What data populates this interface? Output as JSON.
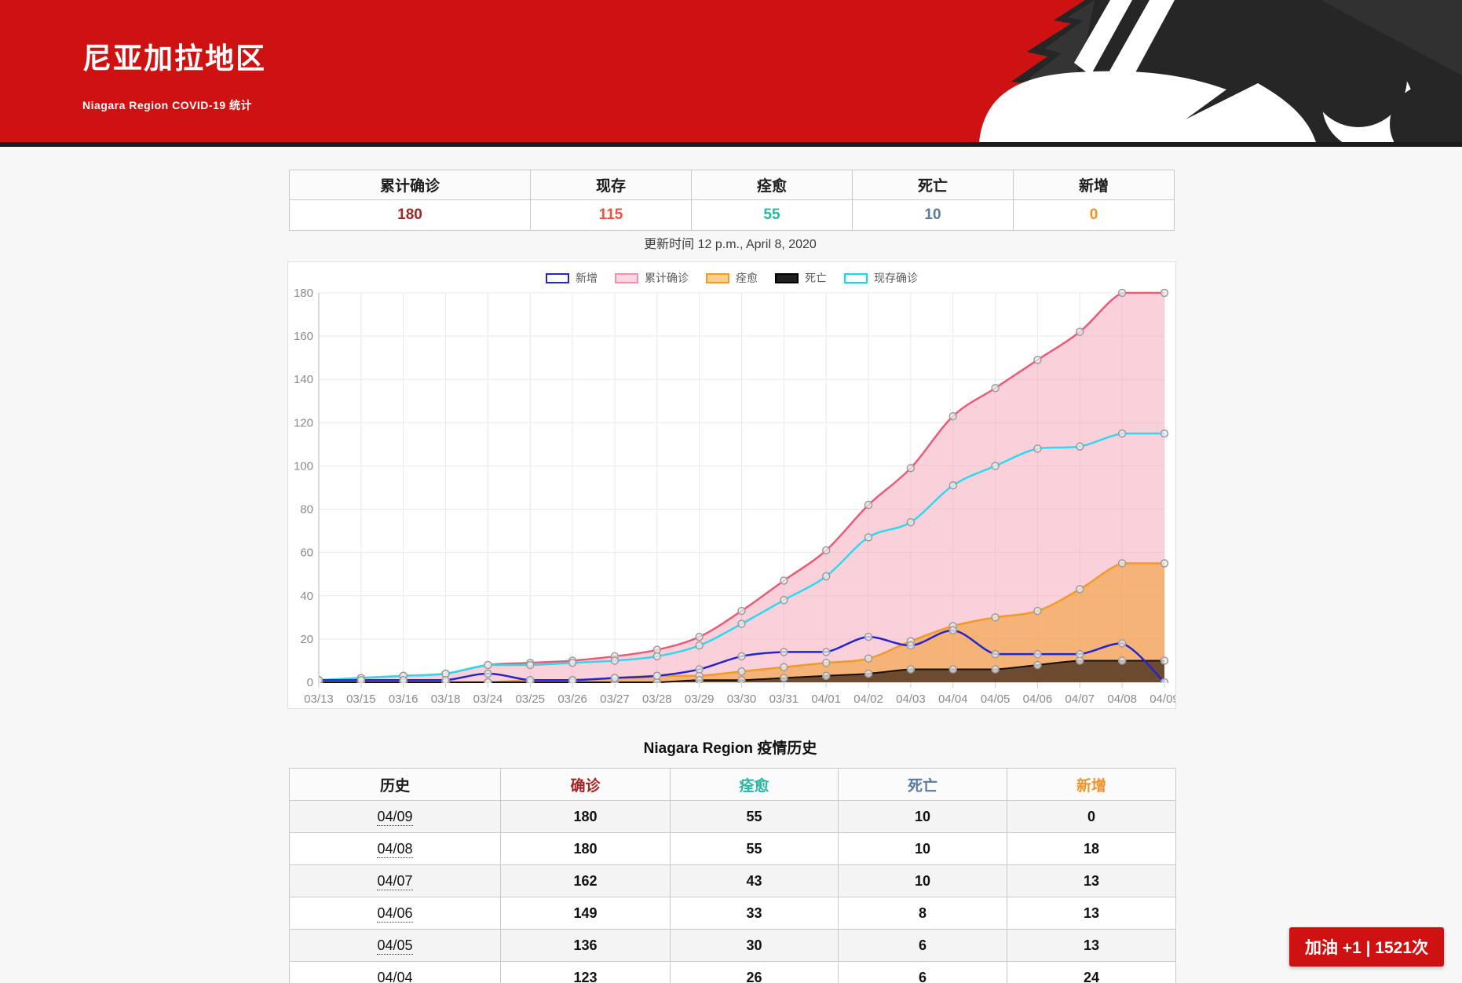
{
  "header": {
    "title": "尼亚加拉地区",
    "subtitle": "Niagara Region COVID-19 统计",
    "accent_red": "#ce1212",
    "mascot_dark": "#262626"
  },
  "summary": {
    "columns": [
      {
        "label": "累计确诊",
        "value": "180",
        "color": "#a32626"
      },
      {
        "label": "现存",
        "value": "115",
        "color": "#f4503c"
      },
      {
        "label": "痊愈",
        "value": "55",
        "color": "#28b7a0"
      },
      {
        "label": "死亡",
        "value": "10",
        "color": "#5b7a9d"
      },
      {
        "label": "新增",
        "value": "0",
        "color": "#f0932c"
      }
    ],
    "updated": "更新时间 12 p.m., April 8, 2020"
  },
  "chart_data": {
    "type": "line",
    "title": "",
    "xlabel": "",
    "ylabel": "",
    "ylim": [
      0,
      180
    ],
    "ytick_step": 20,
    "grid": true,
    "legend_position": "top",
    "categories": [
      "03/13",
      "03/15",
      "03/16",
      "03/18",
      "03/24",
      "03/25",
      "03/26",
      "03/27",
      "03/28",
      "03/29",
      "03/30",
      "03/31",
      "04/01",
      "04/02",
      "04/03",
      "04/04",
      "04/05",
      "04/06",
      "04/07",
      "04/08",
      "04/09"
    ],
    "series": [
      {
        "name": "累计确诊",
        "line_color": "#e85c78",
        "fill_color": "rgba(244,154,175,0.45)",
        "area": true,
        "values": [
          1,
          2,
          3,
          4,
          8,
          9,
          10,
          12,
          15,
          21,
          33,
          47,
          61,
          82,
          99,
          123,
          136,
          149,
          162,
          180,
          180
        ]
      },
      {
        "name": "痊愈",
        "line_color": "#f09a2c",
        "fill_color": "rgba(244,158,54,0.6)",
        "area": true,
        "values": [
          0,
          0,
          0,
          0,
          0,
          1,
          1,
          2,
          3,
          3,
          5,
          7,
          9,
          11,
          19,
          26,
          30,
          33,
          43,
          55,
          55
        ]
      },
      {
        "name": "死亡",
        "line_color": "#191008",
        "fill_color": "rgba(25,12,5,0.62)",
        "area": true,
        "values": [
          0,
          0,
          0,
          0,
          0,
          0,
          0,
          0,
          0,
          1,
          1,
          2,
          3,
          4,
          6,
          6,
          6,
          8,
          10,
          10,
          10
        ]
      },
      {
        "name": "现存确诊",
        "line_color": "#2fd8ee",
        "fill_color": null,
        "area": false,
        "values": [
          1,
          2,
          3,
          4,
          8,
          8,
          9,
          10,
          12,
          17,
          27,
          38,
          49,
          67,
          74,
          91,
          100,
          108,
          109,
          115,
          115
        ]
      },
      {
        "name": "新增",
        "line_color": "#2424cc",
        "fill_color": null,
        "area": false,
        "values": [
          1,
          1,
          1,
          1,
          4,
          1,
          1,
          2,
          3,
          6,
          12,
          14,
          14,
          21,
          17,
          24,
          13,
          13,
          13,
          18,
          0
        ]
      }
    ],
    "legend": [
      {
        "label": "新增",
        "box_border": "#2424cc",
        "box_fill": "#ffffff"
      },
      {
        "label": "累计确诊",
        "box_border": "#f48fb1",
        "box_fill": "#fcd7e2"
      },
      {
        "label": "痊愈",
        "box_border": "#f09a2c",
        "box_fill": "#f8cf90"
      },
      {
        "label": "死亡",
        "box_border": "#000000",
        "box_fill": "#1f1f1f"
      },
      {
        "label": "现存确诊",
        "box_border": "#00e0f0",
        "box_fill": "#ffffff"
      }
    ]
  },
  "history": {
    "title": "Niagara Region 疫情历史",
    "columns": [
      {
        "label": "历史",
        "color": "#1c1c1c"
      },
      {
        "label": "确诊",
        "color": "#a32626"
      },
      {
        "label": "痊愈",
        "color": "#28b7a0"
      },
      {
        "label": "死亡",
        "color": "#5b7a9d"
      },
      {
        "label": "新增",
        "color": "#f0932c"
      }
    ],
    "rows": [
      {
        "date": "04/09",
        "confirmed": "180",
        "recovered": "55",
        "deaths": "10",
        "new": "0"
      },
      {
        "date": "04/08",
        "confirmed": "180",
        "recovered": "55",
        "deaths": "10",
        "new": "18"
      },
      {
        "date": "04/07",
        "confirmed": "162",
        "recovered": "43",
        "deaths": "10",
        "new": "13"
      },
      {
        "date": "04/06",
        "confirmed": "149",
        "recovered": "33",
        "deaths": "8",
        "new": "13"
      },
      {
        "date": "04/05",
        "confirmed": "136",
        "recovered": "30",
        "deaths": "6",
        "new": "13"
      },
      {
        "date": "04/04",
        "confirmed": "123",
        "recovered": "26",
        "deaths": "6",
        "new": "24"
      }
    ]
  },
  "cheer_button": {
    "label": "加油 +1 | 1521次"
  }
}
